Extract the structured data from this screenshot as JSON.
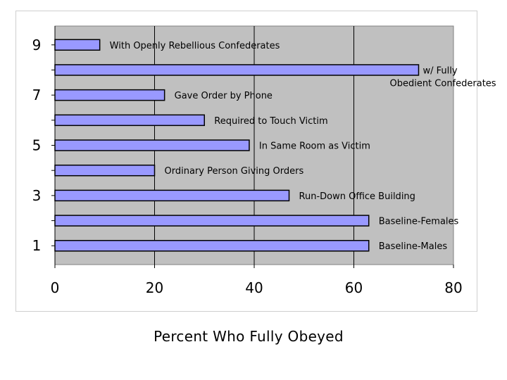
{
  "chart_data": {
    "type": "bar",
    "orientation": "horizontal",
    "xlabel": "Percent Who Fully Obeyed",
    "ylabel": "",
    "xlim": [
      0,
      80
    ],
    "x_ticks": [
      0,
      20,
      40,
      60,
      80
    ],
    "y_tick_labels": [
      "1",
      "",
      "3",
      "",
      "5",
      "",
      "7",
      "",
      "9"
    ],
    "grid": true,
    "plot_background": "#c0c0c0",
    "bar_color": "#9999ff",
    "bar_edge_color": "#000000",
    "bars": [
      {
        "position": 1,
        "value": 63,
        "label": "Baseline-Males"
      },
      {
        "position": 2,
        "value": 63,
        "label": "Baseline-Females"
      },
      {
        "position": 3,
        "value": 47,
        "label": "Run-Down Office Building"
      },
      {
        "position": 4,
        "value": 20,
        "label": "Ordinary Person Giving Orders"
      },
      {
        "position": 5,
        "value": 39,
        "label": "In Same Room as Victim"
      },
      {
        "position": 6,
        "value": 30,
        "label": "Required to Touch Victim"
      },
      {
        "position": 7,
        "value": 22,
        "label": "Gave Order by Phone"
      },
      {
        "position": 8,
        "value": 73,
        "label": "w/ Fully\nObedient Confederates"
      },
      {
        "position": 9,
        "value": 9,
        "label": "With Openly Rebellious Confederates"
      }
    ]
  }
}
